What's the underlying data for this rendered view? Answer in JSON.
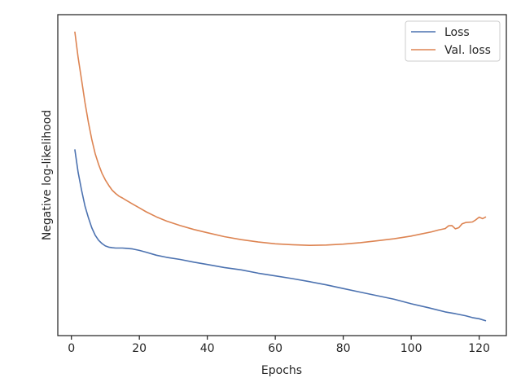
{
  "chart_data": {
    "type": "line",
    "xlabel": "Epochs",
    "ylabel": "Negative log-likelihood",
    "xlim": [
      -4,
      128
    ],
    "ylim": [
      0,
      1
    ],
    "x_ticks": [
      0,
      20,
      40,
      60,
      80,
      100,
      120
    ],
    "y_ticks_shown": false,
    "grid": false,
    "legend_position": "top-right",
    "series": [
      {
        "name": "Loss",
        "color": "#4c72b0",
        "x": [
          1,
          2,
          3,
          4,
          5,
          6,
          7,
          8,
          9,
          10,
          11,
          12,
          13,
          14,
          15,
          16,
          18,
          20,
          22,
          25,
          28,
          32,
          36,
          40,
          45,
          50,
          55,
          60,
          65,
          70,
          75,
          80,
          85,
          90,
          95,
          100,
          105,
          110,
          113,
          116,
          118,
          120,
          122
        ],
        "y": [
          0.594,
          0.517,
          0.458,
          0.405,
          0.366,
          0.333,
          0.308,
          0.291,
          0.28,
          0.272,
          0.268,
          0.266,
          0.265,
          0.265,
          0.265,
          0.264,
          0.262,
          0.257,
          0.251,
          0.241,
          0.234,
          0.227,
          0.218,
          0.21,
          0.2,
          0.192,
          0.181,
          0.172,
          0.163,
          0.153,
          0.142,
          0.13,
          0.118,
          0.106,
          0.094,
          0.079,
          0.066,
          0.052,
          0.046,
          0.039,
          0.033,
          0.029,
          0.022
        ]
      },
      {
        "name": "Val. loss",
        "color": "#dd8452",
        "x": [
          1,
          2,
          3,
          4,
          5,
          6,
          7,
          8,
          9,
          10,
          11,
          12,
          13,
          14,
          15,
          16,
          18,
          20,
          22,
          25,
          28,
          32,
          36,
          40,
          45,
          50,
          55,
          60,
          65,
          70,
          75,
          80,
          85,
          90,
          95,
          100,
          103,
          106,
          108,
          110,
          111,
          112,
          113,
          114,
          115,
          116,
          118,
          119,
          120,
          121,
          122
        ],
        "y": [
          0.987,
          0.9,
          0.826,
          0.75,
          0.684,
          0.628,
          0.58,
          0.544,
          0.514,
          0.492,
          0.474,
          0.458,
          0.447,
          0.438,
          0.432,
          0.425,
          0.412,
          0.399,
          0.386,
          0.369,
          0.355,
          0.34,
          0.327,
          0.316,
          0.303,
          0.293,
          0.285,
          0.279,
          0.276,
          0.274,
          0.275,
          0.278,
          0.283,
          0.289,
          0.296,
          0.305,
          0.312,
          0.319,
          0.325,
          0.33,
          0.339,
          0.34,
          0.329,
          0.333,
          0.346,
          0.35,
          0.352,
          0.359,
          0.368,
          0.363,
          0.369
        ]
      }
    ]
  }
}
